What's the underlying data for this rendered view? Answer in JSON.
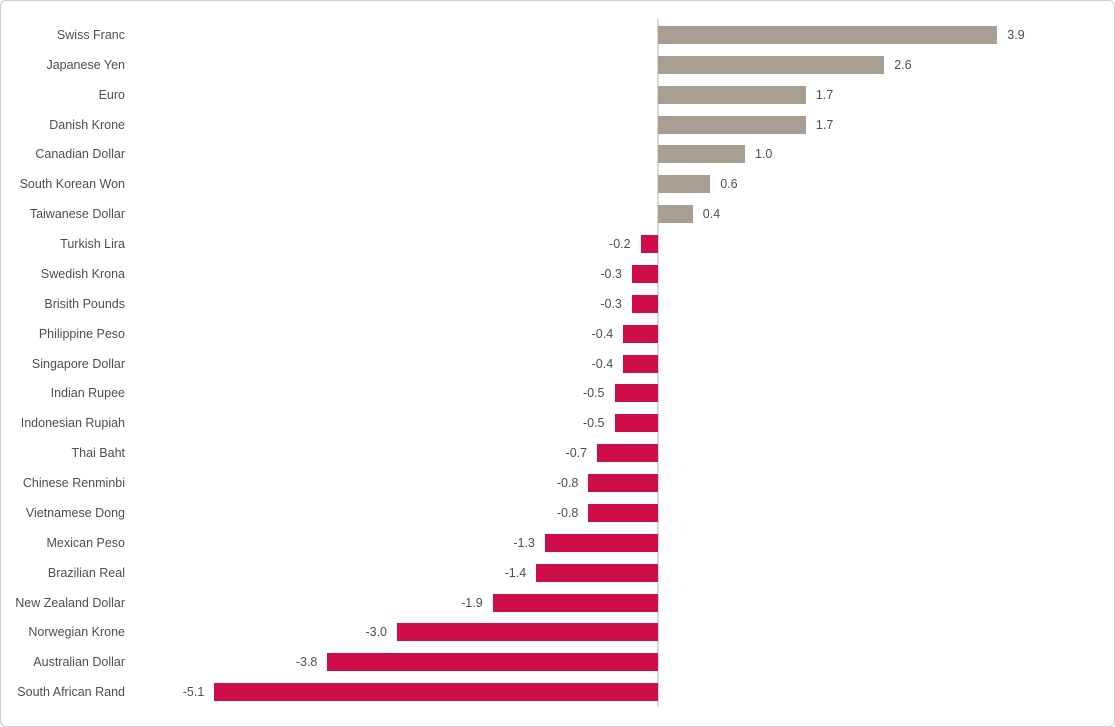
{
  "chart_data": {
    "type": "bar",
    "orientation": "horizontal",
    "title": "",
    "xlabel": "",
    "ylabel": "",
    "categories": [
      "Swiss Franc",
      "Japanese Yen",
      "Euro",
      "Danish Krone",
      "Canadian Dollar",
      "South Korean Won",
      "Taiwanese Dollar",
      "Turkish Lira",
      "Swedish Krona",
      "Brisith Pounds",
      "Philippine Peso",
      "Singapore Dollar",
      "Indian Rupee",
      "Indonesian Rupiah",
      "Thai Baht",
      "Chinese Renminbi",
      "Vietnamese Dong",
      "Mexican Peso",
      "Brazilian Real",
      "New Zealand Dollar",
      "Norwegian Krone",
      "Australian Dollar",
      "South African Rand"
    ],
    "values": [
      3.9,
      2.6,
      1.7,
      1.7,
      1.0,
      0.6,
      0.4,
      -0.2,
      -0.3,
      -0.3,
      -0.4,
      -0.4,
      -0.5,
      -0.5,
      -0.7,
      -0.8,
      -0.8,
      -1.3,
      -1.4,
      -1.9,
      -3.0,
      -3.8,
      -5.1
    ],
    "value_labels": [
      "3.9",
      "2.6",
      "1.7",
      "1.7",
      "1.0",
      "0.6",
      "0.4",
      "-0.2",
      "-0.3",
      "-0.3",
      "-0.4",
      "-0.4",
      "-0.5",
      "-0.5",
      "-0.7",
      "-0.8",
      "-0.8",
      "-1.3",
      "-1.4",
      "-1.9",
      "-3.0",
      "-3.8",
      "-5.1"
    ],
    "xlim": [
      -5.1,
      3.9
    ],
    "grid": false,
    "legend": false,
    "colors": {
      "positive_bar": "#a89e92",
      "negative_bar": "#cf0e49",
      "text": "#4f4f4f",
      "axis_line": "#d9d9d9",
      "frame_border": "#c9cdd1",
      "background": "#ffffff"
    }
  }
}
